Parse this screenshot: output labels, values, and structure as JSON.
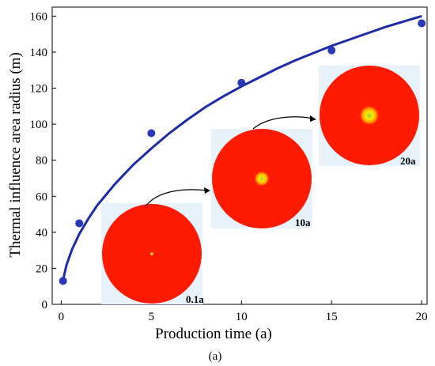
{
  "chart_data": {
    "type": "scatter",
    "xlabel": "Production time (a)",
    "ylabel": "Thermal influence area radius (m)",
    "panel_label": "(a)",
    "xlim": [
      -0.5,
      20.3
    ],
    "ylim": [
      0,
      165
    ],
    "x_ticks": [
      0,
      5,
      10,
      15,
      20
    ],
    "y_ticks": [
      0,
      20,
      40,
      60,
      80,
      100,
      120,
      140,
      160
    ],
    "grid": false,
    "colors": {
      "points": "#2838b8",
      "fit_line": "#1e2aa6",
      "hot_zone": "#ff1a00",
      "inset_bg": "#e8f2fb"
    },
    "series": [
      {
        "x": [
          0.1,
          1,
          5,
          10,
          15,
          20
        ],
        "y": [
          13,
          45,
          95,
          123,
          141,
          156
        ]
      }
    ],
    "fit_curve": {
      "x": [
        0.1,
        0.3,
        0.6,
        1,
        1.5,
        2,
        3,
        4,
        5,
        6,
        7,
        8,
        9,
        10,
        11,
        12,
        13,
        14,
        15,
        16,
        17,
        18,
        19,
        20
      ],
      "y": [
        13.5,
        22,
        30.5,
        39,
        47.5,
        55,
        67,
        77.5,
        86.5,
        95,
        102.5,
        109.5,
        115.5,
        121,
        126,
        131,
        135.5,
        139.5,
        143.5,
        147,
        150.5,
        154,
        157,
        160
      ]
    },
    "insets": [
      {
        "label": "0.1a",
        "time": 0.1
      },
      {
        "label": "10a",
        "time": 10
      },
      {
        "label": "20a",
        "time": 20
      }
    ]
  }
}
